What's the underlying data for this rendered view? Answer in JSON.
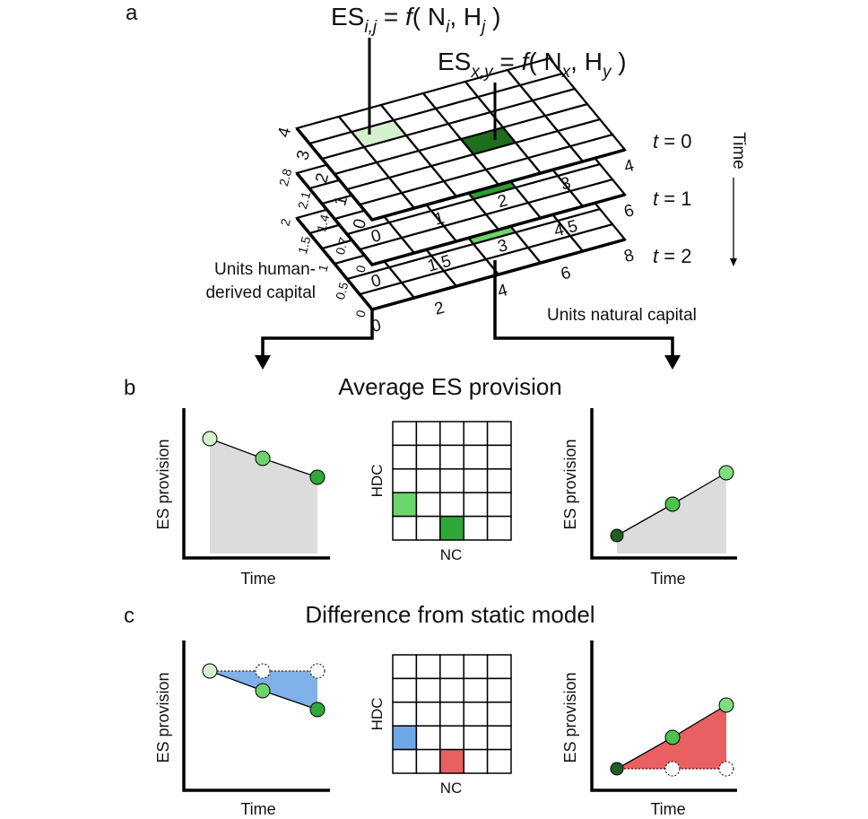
{
  "panel_labels": [
    "a",
    "b",
    "c"
  ],
  "equations": [
    {
      "parts": [
        "ES",
        "i,j",
        " = ",
        "f",
        "( N",
        "i",
        ", H",
        "j",
        " )"
      ]
    },
    {
      "parts": [
        "ES",
        "x,y",
        " = ",
        "f",
        "( N",
        "x",
        ", H",
        "y",
        " )"
      ]
    }
  ],
  "layers": [
    {
      "t": "t",
      "label": " = 0",
      "natural_ticks": [
        "0",
        "1",
        "2",
        "3",
        "4"
      ],
      "human_ticks": [
        "0",
        "1",
        "2",
        "3",
        "4"
      ]
    },
    {
      "t": "t",
      "label": " = 1",
      "natural_ticks": [
        "0",
        "1.5",
        "3",
        "4.5",
        "6"
      ],
      "human_ticks": [
        "0",
        "0.7",
        "1.4",
        "2.1",
        "2.8"
      ]
    },
    {
      "t": "t",
      "label": " = 2",
      "natural_ticks": [
        "0",
        "2",
        "4",
        "6",
        "8"
      ],
      "human_ticks": [
        "0",
        "0.5",
        "1",
        "1.5",
        "2"
      ]
    }
  ],
  "axis_labels": {
    "human": [
      "Units human-",
      "derived capital"
    ],
    "natural": "Units natural capital",
    "time": "Time"
  },
  "panel_b": {
    "title": "Average ES provision",
    "y_label": "ES provision",
    "x_label": "Time",
    "grid_y": "HDC",
    "grid_x": "NC"
  },
  "panel_c": {
    "title": "Difference from static model",
    "y_label": "ES provision",
    "x_label": "Time",
    "grid_y": "HDC",
    "grid_x": "NC"
  }
}
